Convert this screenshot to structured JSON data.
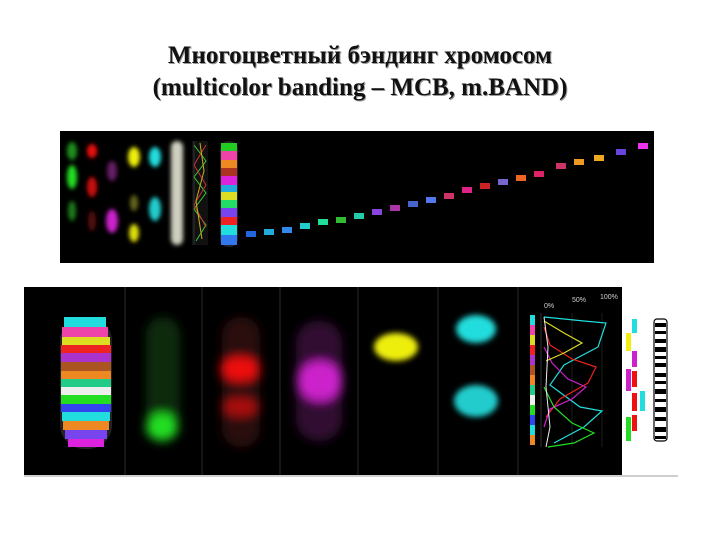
{
  "title": {
    "line1": "Многоцветный бэндинг хромосом",
    "line2": "(multicolor banding – MCB, m.BAND)"
  },
  "profile_labels": {
    "p0": "0%",
    "p50": "50%",
    "p100": "100%"
  },
  "colors": {
    "background": "#000000",
    "green": "#22dd22",
    "red": "#ee1111",
    "magenta": "#cc22cc",
    "yellow": "#eeee11",
    "cyan": "#22dddd"
  }
}
